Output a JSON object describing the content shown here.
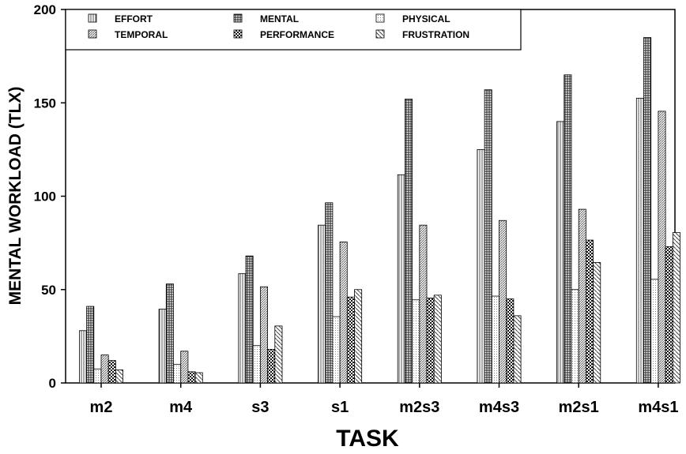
{
  "chart_data": {
    "type": "bar",
    "title": "",
    "xlabel": "TASK",
    "ylabel": "MENTAL WORKLOAD (TLX)",
    "ylim": [
      0,
      200
    ],
    "yticks": [
      "0",
      "50",
      "100",
      "150",
      "200"
    ],
    "grid": false,
    "legend_position": "top",
    "categories": [
      "m2",
      "m4",
      "s3",
      "s1",
      "m2s3",
      "m4s3",
      "m2s1",
      "m4s1"
    ],
    "series": [
      {
        "name": "EFFORT",
        "pattern": "vertical-lines",
        "values": [
          28,
          39.5,
          58.5,
          84.5,
          111.5,
          125,
          140,
          152.5
        ]
      },
      {
        "name": "MENTAL",
        "pattern": "dense-grid",
        "values": [
          41,
          53,
          68,
          96.5,
          152,
          157,
          165,
          185
        ]
      },
      {
        "name": "PHYSICAL",
        "pattern": "fine-dots",
        "values": [
          7.5,
          10,
          20,
          35.5,
          44.5,
          46.5,
          50,
          55.5
        ]
      },
      {
        "name": "TEMPORAL",
        "pattern": "diagonal-fine",
        "values": [
          15,
          17,
          51.5,
          75.5,
          84.5,
          87,
          93,
          145.5
        ]
      },
      {
        "name": "PERFORMANCE",
        "pattern": "checker",
        "values": [
          12,
          6,
          18,
          46,
          45.5,
          45,
          76.5,
          73
        ]
      },
      {
        "name": "FRUSTRATION",
        "pattern": "diagonal-coarse",
        "values": [
          7,
          5.5,
          30.5,
          50,
          47,
          36,
          64.5,
          80.5
        ]
      }
    ]
  }
}
